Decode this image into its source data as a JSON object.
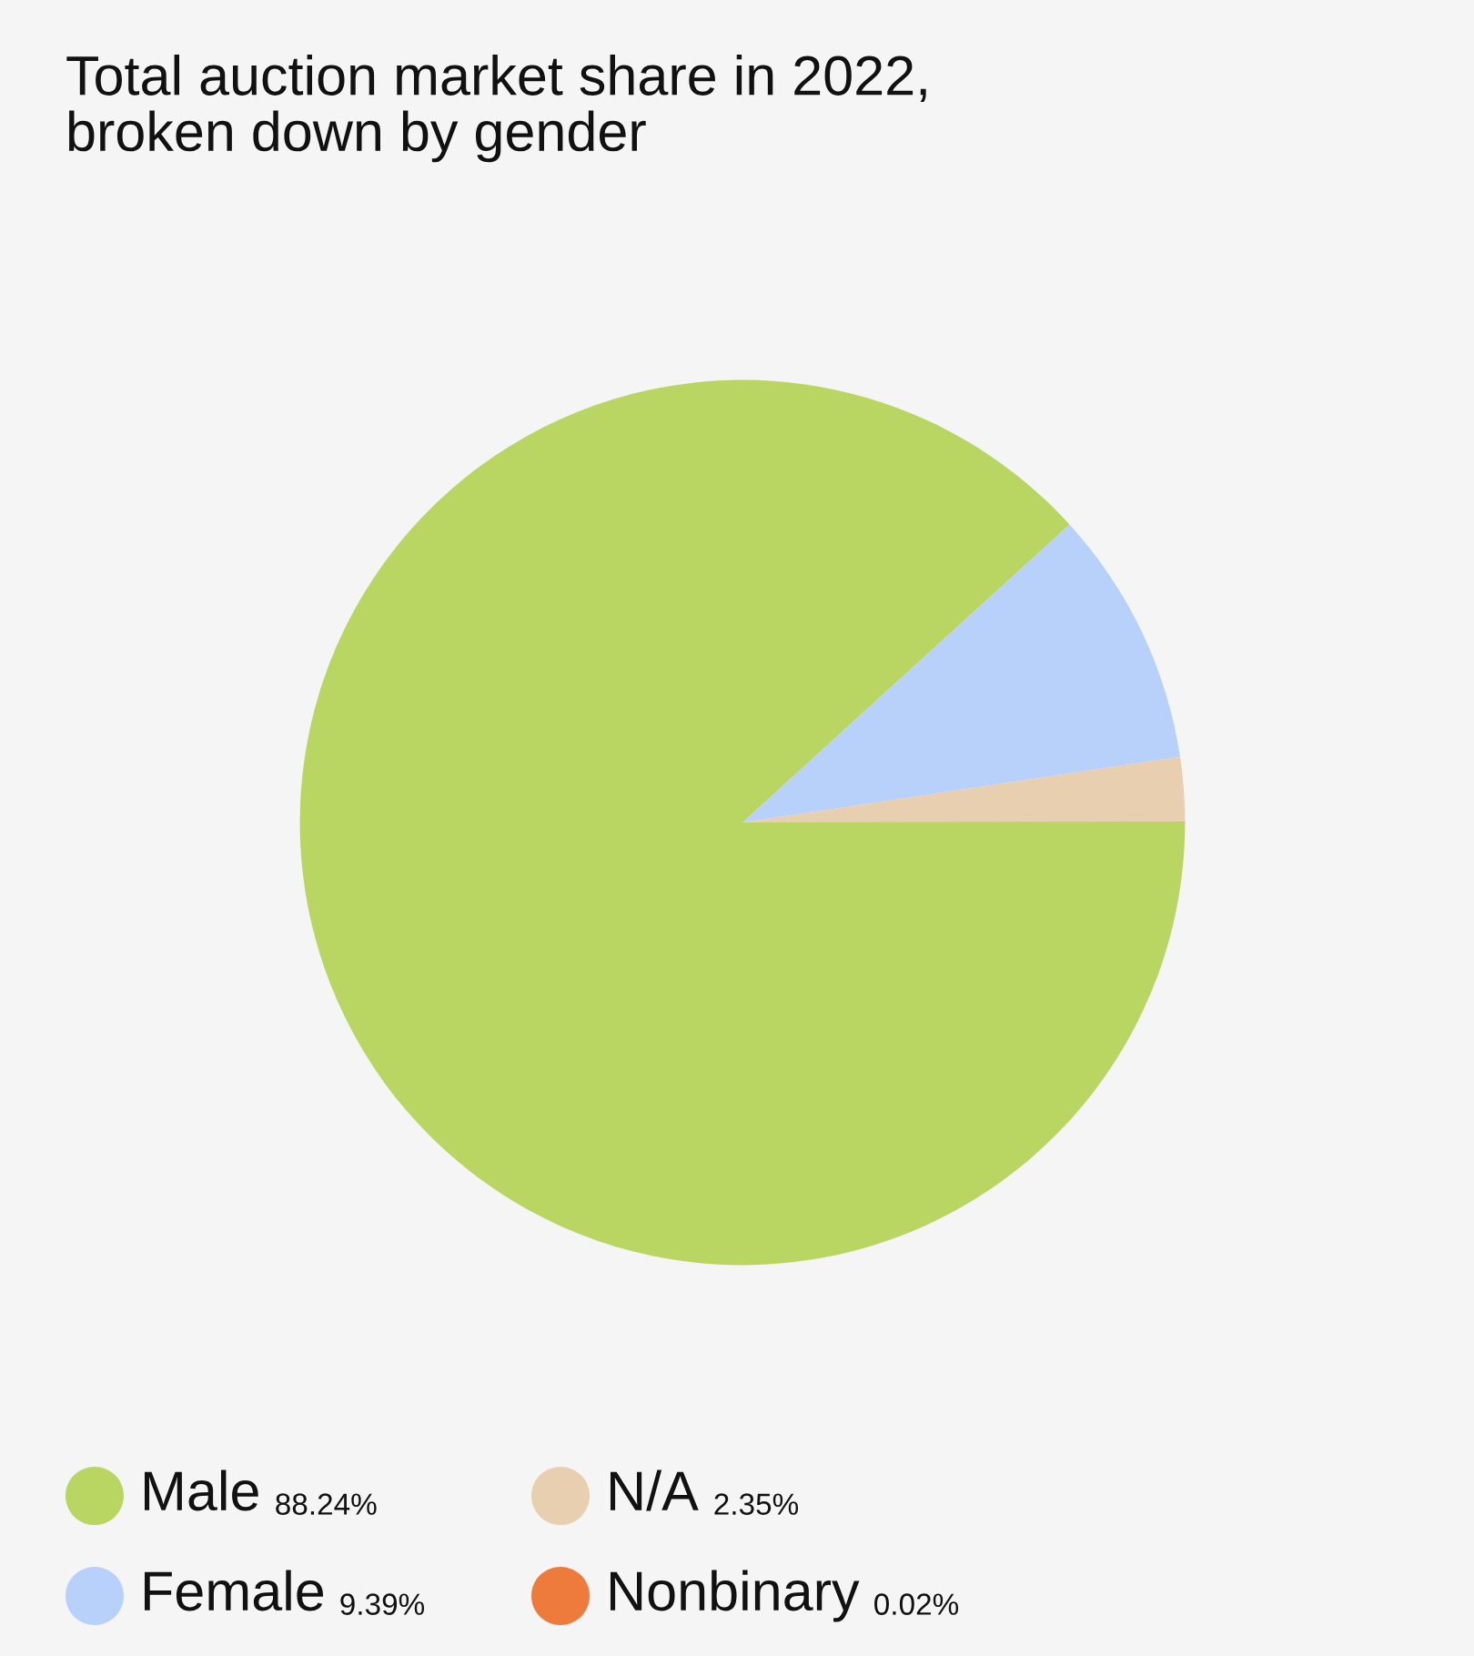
{
  "chart_data": {
    "type": "pie",
    "title": "Total auction market share in 2022,\nbroken down by gender",
    "categories": [
      "Male",
      "Female",
      "N/A",
      "Nonbinary"
    ],
    "values": [
      88.24,
      9.39,
      2.35,
      0.02
    ],
    "value_labels": [
      "88.24%",
      "9.39%",
      "2.35%",
      "0.02%"
    ],
    "colors": [
      "#b8d661",
      "#b8d1fa",
      "#e8cfb0",
      "#ee7a3c"
    ],
    "legend": "bottom"
  }
}
